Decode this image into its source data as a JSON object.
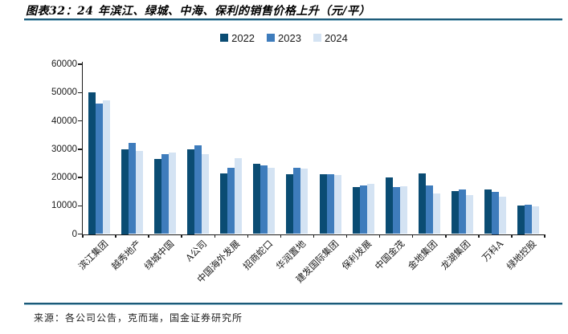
{
  "header": {
    "figure_title": "图表32：24 年滨江、绿城、中海、保利的销售价格上升（元/平）"
  },
  "chart_data": {
    "type": "bar",
    "title": "图表32：24 年滨江、绿城、中海、保利的销售价格上升（元/平）",
    "xlabel": "",
    "ylabel": "",
    "ylim": [
      0,
      60000
    ],
    "yticks": [
      0,
      10000,
      20000,
      30000,
      40000,
      50000,
      60000
    ],
    "grid": false,
    "legend_position": "top-center",
    "categories": [
      "滨江集团",
      "越秀地产",
      "绿城中国",
      "A公司",
      "中国海外发展",
      "招商蛇口",
      "华润置地",
      "建发国际集团",
      "保利发展",
      "中国金茂",
      "金地集团",
      "龙湖集团",
      "万科A",
      "绿地控股"
    ],
    "series": [
      {
        "name": "2022",
        "color": "#0a4c73",
        "values": [
          50000,
          30000,
          26500,
          30000,
          21300,
          24800,
          21200,
          21000,
          16600,
          20100,
          21400,
          15200,
          15700,
          10000
        ]
      },
      {
        "name": "2023",
        "color": "#3e7cbc",
        "values": [
          46000,
          32100,
          28100,
          31300,
          23300,
          24200,
          23300,
          21000,
          17300,
          16700,
          17200,
          15700,
          15000,
          10300
        ]
      },
      {
        "name": "2024",
        "color": "#d4e3f3",
        "values": [
          47300,
          29300,
          28800,
          28300,
          26900,
          23500,
          23100,
          20800,
          17800,
          16900,
          14200,
          13800,
          13200,
          9700
        ]
      }
    ]
  },
  "footer": {
    "source": "来源：各公司公告，克而瑞，国金证券研究所"
  },
  "colors": {
    "accent_rule": "#1c5a78",
    "axis": "#1a1a1a",
    "series_2022": "#0a4c73",
    "series_2023": "#3e7cbc",
    "series_2024": "#d4e3f3"
  }
}
